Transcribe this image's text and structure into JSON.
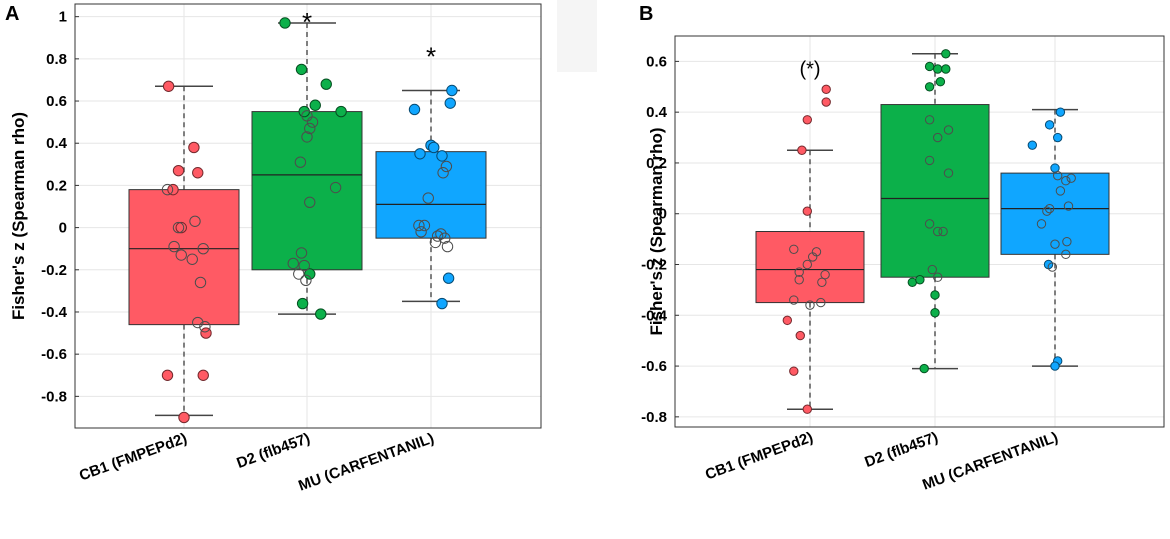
{
  "chart_data": [
    {
      "type": "box",
      "panel": "A",
      "ylabel": "Fisher's z (Spearman rho)",
      "xlabel": "",
      "ylim": [
        -0.95,
        1.06
      ],
      "yticks": [
        -0.8,
        -0.6,
        -0.4,
        -0.2,
        0,
        0.2,
        0.4,
        0.6,
        0.8,
        1
      ],
      "ytick_labels": [
        "-0.8",
        "-0.6",
        "-0.4",
        "-0.2",
        "0",
        "0.2",
        "0.4",
        "0.6",
        "0.8",
        "1"
      ],
      "grid": true,
      "categories": [
        "CB1 (FMPEPd2)",
        "D2 (flb457)",
        "MU (CARFENTANIL)"
      ],
      "annotations": [
        "",
        "*",
        "*"
      ],
      "colors": [
        "#ff5a64",
        "#0cb04a",
        "#10a6ff"
      ],
      "boxes": [
        {
          "whisker_low": -0.89,
          "q1": -0.46,
          "median": -0.1,
          "q3": 0.18,
          "whisker_high": 0.67
        },
        {
          "whisker_low": -0.41,
          "q1": -0.2,
          "median": 0.25,
          "q3": 0.55,
          "whisker_high": 0.97
        },
        {
          "whisker_low": -0.35,
          "q1": -0.05,
          "median": 0.11,
          "q3": 0.36,
          "whisker_high": 0.65
        }
      ],
      "points": [
        {
          "filled": [
            [
              -0.28,
              0.67
            ],
            [
              -0.2,
              0.18
            ],
            [
              0.18,
              0.38
            ],
            [
              0.25,
              0.26
            ],
            [
              -0.1,
              0.27
            ],
            [
              0.4,
              -0.5
            ],
            [
              -0.3,
              -0.7
            ],
            [
              0.35,
              -0.7
            ],
            [
              0.0,
              -0.9
            ],
            [
              -0.05,
              0.0
            ]
          ],
          "open": [
            [
              -0.1,
              0.0
            ],
            [
              0.2,
              0.03
            ],
            [
              -0.18,
              -0.09
            ],
            [
              0.35,
              -0.1
            ],
            [
              -0.05,
              -0.13
            ],
            [
              0.15,
              -0.15
            ],
            [
              0.3,
              -0.26
            ],
            [
              0.25,
              -0.45
            ],
            [
              0.38,
              -0.47
            ],
            [
              -0.3,
              0.18
            ]
          ]
        },
        {
          "filled": [
            [
              -0.4,
              0.97
            ],
            [
              -0.1,
              0.75
            ],
            [
              0.35,
              0.68
            ],
            [
              0.62,
              0.55
            ],
            [
              0.15,
              0.58
            ],
            [
              -0.05,
              0.55
            ],
            [
              -0.08,
              -0.36
            ],
            [
              0.25,
              -0.41
            ],
            [
              0.05,
              -0.22
            ]
          ],
          "open": [
            [
              0.0,
              0.53
            ],
            [
              0.1,
              0.5
            ],
            [
              0.05,
              0.47
            ],
            [
              0.0,
              0.43
            ],
            [
              -0.12,
              0.31
            ],
            [
              0.05,
              0.12
            ],
            [
              0.52,
              0.19
            ],
            [
              -0.1,
              -0.12
            ],
            [
              -0.25,
              -0.17
            ],
            [
              -0.05,
              -0.18
            ],
            [
              -0.02,
              -0.25
            ],
            [
              -0.15,
              -0.22
            ]
          ]
        },
        {
          "filled": [
            [
              -0.3,
              0.56
            ],
            [
              0.38,
              0.65
            ],
            [
              0.35,
              0.59
            ],
            [
              -0.2,
              0.35
            ],
            [
              0.0,
              0.39
            ],
            [
              0.05,
              0.38
            ],
            [
              0.2,
              0.34
            ],
            [
              0.2,
              -0.36
            ],
            [
              0.32,
              -0.24
            ]
          ],
          "open": [
            [
              0.28,
              0.29
            ],
            [
              0.22,
              0.26
            ],
            [
              -0.05,
              0.14
            ],
            [
              -0.12,
              0.01
            ],
            [
              -0.18,
              -0.02
            ],
            [
              0.18,
              -0.03
            ],
            [
              0.25,
              -0.05
            ],
            [
              0.08,
              -0.07
            ],
            [
              0.3,
              -0.09
            ],
            [
              -0.22,
              0.01
            ],
            [
              0.12,
              -0.04
            ]
          ]
        }
      ]
    },
    {
      "type": "box",
      "panel": "B",
      "ylabel": "Fisher's z (Spearman rho)",
      "xlabel": "",
      "ylim": [
        -0.84,
        0.7
      ],
      "yticks": [
        -0.8,
        -0.6,
        -0.4,
        -0.2,
        0,
        0.2,
        0.4,
        0.6
      ],
      "ytick_labels": [
        "-0.8",
        "-0.6",
        "-0.4",
        "-0.2",
        "0",
        "0.2",
        "0.4",
        "0.6"
      ],
      "grid": true,
      "categories": [
        "CB1 (FMPEPd2)",
        "D2 (flb457)",
        "MU (CARFENTANIL)"
      ],
      "annotations": [
        "(*)",
        "",
        ""
      ],
      "colors": [
        "#ff5a64",
        "#0cb04a",
        "#10a6ff"
      ],
      "boxes": [
        {
          "whisker_low": -0.77,
          "q1": -0.35,
          "median": -0.22,
          "q3": -0.07,
          "whisker_high": 0.25
        },
        {
          "whisker_low": -0.61,
          "q1": -0.25,
          "median": 0.06,
          "q3": 0.43,
          "whisker_high": 0.63
        },
        {
          "whisker_low": -0.6,
          "q1": -0.16,
          "median": 0.02,
          "q3": 0.16,
          "whisker_high": 0.41
        }
      ],
      "points": [
        {
          "filled": [
            [
              0.3,
              0.49
            ],
            [
              0.3,
              0.44
            ],
            [
              -0.05,
              0.37
            ],
            [
              -0.15,
              0.25
            ],
            [
              -0.05,
              0.01
            ],
            [
              -0.42,
              -0.42
            ],
            [
              -0.18,
              -0.48
            ],
            [
              -0.3,
              -0.62
            ],
            [
              -0.05,
              -0.77
            ]
          ],
          "open": [
            [
              -0.3,
              -0.14
            ],
            [
              0.12,
              -0.15
            ],
            [
              0.05,
              -0.17
            ],
            [
              -0.05,
              -0.2
            ],
            [
              -0.2,
              -0.23
            ],
            [
              0.28,
              -0.24
            ],
            [
              0.22,
              -0.27
            ],
            [
              -0.2,
              -0.26
            ],
            [
              0.0,
              -0.36
            ],
            [
              -0.3,
              -0.34
            ],
            [
              0.2,
              -0.35
            ]
          ]
        },
        {
          "filled": [
            [
              0.2,
              0.63
            ],
            [
              -0.1,
              0.58
            ],
            [
              0.05,
              0.57
            ],
            [
              0.2,
              0.57
            ],
            [
              0.1,
              0.52
            ],
            [
              -0.1,
              0.5
            ],
            [
              -0.42,
              -0.27
            ],
            [
              -0.28,
              -0.26
            ],
            [
              0.0,
              -0.32
            ],
            [
              0.0,
              -0.39
            ],
            [
              -0.2,
              -0.61
            ]
          ],
          "open": [
            [
              -0.1,
              0.37
            ],
            [
              0.05,
              0.3
            ],
            [
              0.25,
              0.33
            ],
            [
              -0.1,
              0.21
            ],
            [
              0.25,
              0.16
            ],
            [
              -0.1,
              -0.04
            ],
            [
              0.05,
              -0.07
            ],
            [
              0.15,
              -0.07
            ],
            [
              -0.05,
              -0.22
            ],
            [
              0.05,
              -0.25
            ]
          ]
        },
        {
          "filled": [
            [
              -0.42,
              0.27
            ],
            [
              -0.1,
              0.35
            ],
            [
              0.05,
              0.3
            ],
            [
              0.1,
              0.4
            ],
            [
              0.0,
              0.18
            ],
            [
              -0.12,
              -0.2
            ],
            [
              0.05,
              -0.58
            ],
            [
              0.0,
              -0.6
            ]
          ],
          "open": [
            [
              0.05,
              0.15
            ],
            [
              0.2,
              0.13
            ],
            [
              0.1,
              0.09
            ],
            [
              -0.15,
              0.01
            ],
            [
              -0.1,
              0.02
            ],
            [
              0.3,
              0.14
            ],
            [
              -0.25,
              -0.04
            ],
            [
              0.25,
              0.03
            ],
            [
              0.22,
              -0.11
            ],
            [
              0.0,
              -0.12
            ],
            [
              -0.05,
              -0.21
            ],
            [
              0.2,
              -0.16
            ]
          ]
        }
      ]
    }
  ]
}
